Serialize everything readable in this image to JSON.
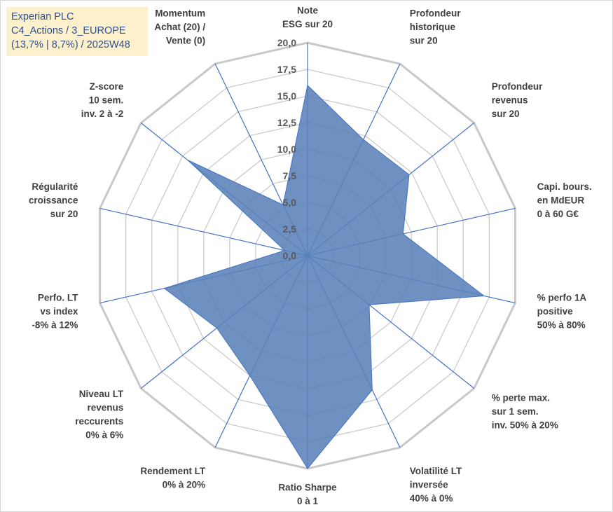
{
  "title_lines": [
    "Experian PLC",
    "C4_Actions / 3_EUROPE",
    "(13,7% | 8,7%) / 2025W48"
  ],
  "chart_data": {
    "type": "radar",
    "title": "Experian PLC C4_Actions / 3_EUROPE (13,7% | 8,7%) / 2025W48",
    "rmin": 0,
    "rmax": 20,
    "ticks": [
      "0,0",
      "2,5",
      "5,0",
      "7,5",
      "10,0",
      "12,5",
      "15,0",
      "17,5",
      "20,0"
    ],
    "categories": [
      [
        "Note",
        "ESG sur 20"
      ],
      [
        "Profondeur",
        "historique",
        "sur 20"
      ],
      [
        "Profondeur",
        "revenus",
        "sur 20"
      ],
      [
        "Capi. bours.",
        "en MdEUR",
        "0 à 60 G€"
      ],
      [
        "% perfo 1A",
        "positive",
        "50% à 80%"
      ],
      [
        "% perte max.",
        "sur 1 sem.",
        "inv. 50% à 20%"
      ],
      [
        "Volatilité LT",
        "inversée",
        "40% à 0%"
      ],
      [
        "Ratio Sharpe",
        "0 à 1"
      ],
      [
        "Rendement LT",
        "0% à 20%"
      ],
      [
        "Niveau LT",
        "revenus",
        "reccurents",
        "0% à 6%"
      ],
      [
        "Perfo. LT",
        "vs index",
        "-8% à 12%"
      ],
      [
        "Régularité",
        "croissance",
        "sur 20"
      ],
      [
        "Z-score",
        "10 sem.",
        "inv. 2 à -2"
      ],
      [
        "Momentum",
        "Achat (20) /",
        "Vente (0)"
      ]
    ],
    "series": [
      {
        "name": "Experian PLC",
        "values": [
          16.0,
          12.1,
          12.2,
          9.2,
          17.0,
          7.4,
          14.0,
          20.0,
          12.5,
          10.9,
          13.8,
          2.2,
          14.4,
          5.3
        ]
      }
    ],
    "colors": {
      "fill": "#5a82b8",
      "stroke": "#4472c4",
      "grid": "#c8c8c8",
      "spoke": "#4472c4"
    },
    "grid": true,
    "legend": "none"
  }
}
